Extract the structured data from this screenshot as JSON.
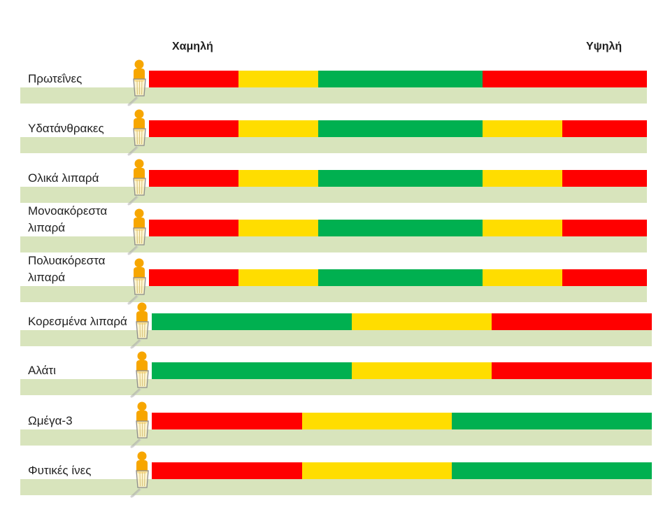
{
  "colors": {
    "red": "#ff0000",
    "yellow": "#ffdd00",
    "green": "#00b050",
    "band": "#d8e4bc",
    "person": "#f7a600",
    "glass_outline": "#8c8c8c",
    "glass_fill": "#fff3c4"
  },
  "icons": {
    "row_marker": "person-icon"
  },
  "chart_data": {
    "type": "bar",
    "orientation": "horizontal",
    "stacked": true,
    "scale": {
      "low": "Χαμηλή",
      "high": "Υψηλή"
    },
    "xlim": [
      0,
      100
    ],
    "categories": [
      "Πρωτεΐνες",
      "Υδατάνθρακες",
      "Ολικά λιπαρά",
      "Μονοακόρεστα λιπαρά",
      "Πολυακόρεστα λιπαρά",
      "Κορεσμένα λιπαρά",
      "Αλάτι",
      "Ωμέγα-3",
      "Φυτικές ίνες"
    ],
    "zones": [
      [
        {
          "level": "red",
          "to": 18
        },
        {
          "level": "yellow",
          "to": 34
        },
        {
          "level": "green",
          "to": 67
        },
        {
          "level": "red",
          "to": 100
        }
      ],
      [
        {
          "level": "red",
          "to": 18
        },
        {
          "level": "yellow",
          "to": 34
        },
        {
          "level": "green",
          "to": 67
        },
        {
          "level": "yellow",
          "to": 83
        },
        {
          "level": "red",
          "to": 100
        }
      ],
      [
        {
          "level": "red",
          "to": 18
        },
        {
          "level": "yellow",
          "to": 34
        },
        {
          "level": "green",
          "to": 67
        },
        {
          "level": "yellow",
          "to": 83
        },
        {
          "level": "red",
          "to": 100
        }
      ],
      [
        {
          "level": "red",
          "to": 18
        },
        {
          "level": "yellow",
          "to": 34
        },
        {
          "level": "green",
          "to": 67
        },
        {
          "level": "yellow",
          "to": 83
        },
        {
          "level": "red",
          "to": 100
        }
      ],
      [
        {
          "level": "red",
          "to": 18
        },
        {
          "level": "yellow",
          "to": 34
        },
        {
          "level": "green",
          "to": 67
        },
        {
          "level": "yellow",
          "to": 83
        },
        {
          "level": "red",
          "to": 100
        }
      ],
      [
        {
          "level": "green",
          "to": 40
        },
        {
          "level": "yellow",
          "to": 68
        },
        {
          "level": "red",
          "to": 100
        }
      ],
      [
        {
          "level": "green",
          "to": 40
        },
        {
          "level": "yellow",
          "to": 68
        },
        {
          "level": "red",
          "to": 100
        }
      ],
      [
        {
          "level": "red",
          "to": 30
        },
        {
          "level": "yellow",
          "to": 60
        },
        {
          "level": "green",
          "to": 100
        }
      ],
      [
        {
          "level": "red",
          "to": 30
        },
        {
          "level": "yellow",
          "to": 60
        },
        {
          "level": "green",
          "to": 100
        }
      ]
    ]
  }
}
